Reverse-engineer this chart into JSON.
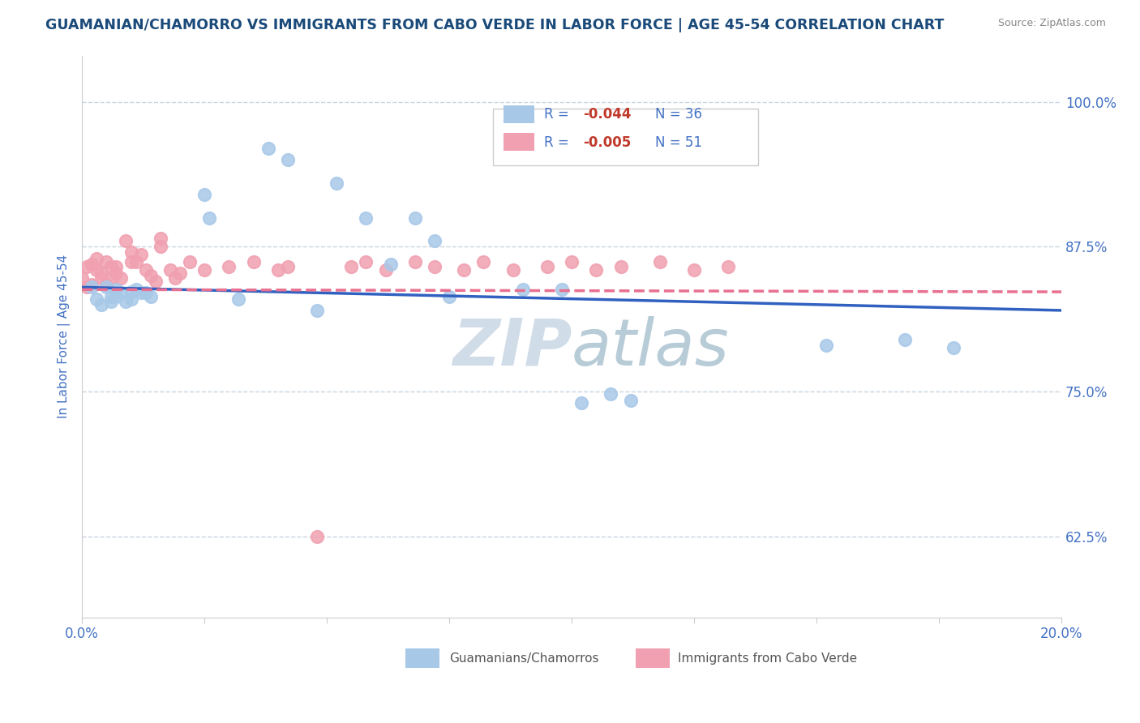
{
  "title": "GUAMANIAN/CHAMORRO VS IMMIGRANTS FROM CABO VERDE IN LABOR FORCE | AGE 45-54 CORRELATION CHART",
  "source": "Source: ZipAtlas.com",
  "ylabel": "In Labor Force | Age 45-54",
  "xlim": [
    0.0,
    0.2
  ],
  "ylim": [
    0.555,
    1.04
  ],
  "xticks": [
    0.0,
    0.025,
    0.05,
    0.075,
    0.1,
    0.125,
    0.15,
    0.175,
    0.2
  ],
  "xticklabels": [
    "0.0%",
    "",
    "",
    "",
    "",
    "",
    "",
    "",
    "20.0%"
  ],
  "yticks": [
    0.625,
    0.75,
    0.875,
    1.0
  ],
  "yticklabels": [
    "62.5%",
    "75.0%",
    "87.5%",
    "100.0%"
  ],
  "r_blue": "-0.044",
  "n_blue": "36",
  "r_pink": "-0.005",
  "n_pink": "51",
  "blue_color": "#a8c8e8",
  "pink_color": "#f0a0b0",
  "blue_line_color": "#3060c0",
  "pink_line_color": "#e87090",
  "watermark_color": "#d0dce8",
  "background_color": "#ffffff",
  "grid_color": "#c8d4e0",
  "title_color": "#1a4a7a",
  "axis_color": "#4472c4",
  "source_color": "#888888",
  "legend_text_color": "#4472c4",
  "legend_r_value_color": "#c0392b",
  "blue_scatter_x": [
    0.002,
    0.003,
    0.004,
    0.005,
    0.006,
    0.006,
    0.007,
    0.007,
    0.008,
    0.009,
    0.01,
    0.01,
    0.011,
    0.012,
    0.013,
    0.014,
    0.025,
    0.026,
    0.032,
    0.038,
    0.042,
    0.048,
    0.052,
    0.058,
    0.063,
    0.068,
    0.072,
    0.075,
    0.09,
    0.098,
    0.102,
    0.108,
    0.112,
    0.152,
    0.168,
    0.178
  ],
  "blue_scatter_y": [
    0.84,
    0.83,
    0.825,
    0.84,
    0.832,
    0.828,
    0.838,
    0.832,
    0.835,
    0.828,
    0.836,
    0.83,
    0.838,
    0.835,
    0.835,
    0.832,
    0.92,
    0.9,
    0.83,
    0.96,
    0.95,
    0.82,
    0.93,
    0.9,
    0.86,
    0.9,
    0.88,
    0.832,
    0.838,
    0.838,
    0.74,
    0.748,
    0.742,
    0.79,
    0.795,
    0.788
  ],
  "pink_scatter_x": [
    0.0,
    0.001,
    0.001,
    0.002,
    0.002,
    0.003,
    0.003,
    0.004,
    0.004,
    0.005,
    0.005,
    0.006,
    0.006,
    0.007,
    0.007,
    0.008,
    0.009,
    0.01,
    0.01,
    0.011,
    0.012,
    0.013,
    0.014,
    0.015,
    0.016,
    0.016,
    0.018,
    0.019,
    0.02,
    0.022,
    0.025,
    0.03,
    0.035,
    0.04,
    0.042,
    0.048,
    0.055,
    0.058,
    0.062,
    0.068,
    0.072,
    0.078,
    0.082,
    0.088,
    0.095,
    0.1,
    0.105,
    0.11,
    0.118,
    0.125,
    0.132
  ],
  "pink_scatter_y": [
    0.848,
    0.858,
    0.84,
    0.86,
    0.842,
    0.865,
    0.855,
    0.852,
    0.848,
    0.862,
    0.842,
    0.858,
    0.848,
    0.858,
    0.852,
    0.848,
    0.88,
    0.87,
    0.862,
    0.862,
    0.868,
    0.855,
    0.85,
    0.845,
    0.882,
    0.875,
    0.855,
    0.848,
    0.852,
    0.862,
    0.855,
    0.858,
    0.862,
    0.855,
    0.858,
    0.625,
    0.858,
    0.862,
    0.855,
    0.862,
    0.858,
    0.855,
    0.862,
    0.855,
    0.858,
    0.862,
    0.855,
    0.858,
    0.862,
    0.855,
    0.858
  ],
  "blue_trend_x": [
    0.0,
    0.2
  ],
  "blue_trend_y": [
    0.84,
    0.82
  ],
  "pink_trend_x": [
    0.0,
    0.2
  ],
  "pink_trend_y": [
    0.838,
    0.836
  ]
}
